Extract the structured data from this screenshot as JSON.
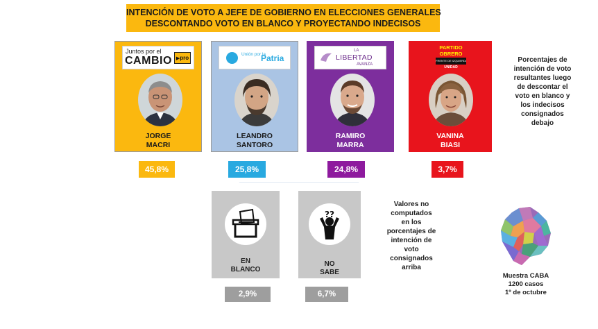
{
  "title": {
    "line1": "INTENCIÓN DE VOTO A JEFE DE GOBIERNO EN ELECCIONES GENERALES",
    "line2": "DESCONTANDO VOTO EN BLANCO Y PROYECTANDO INDECISOS"
  },
  "candidates": [
    {
      "first": "JORGE",
      "last": "MACRI",
      "party_logo_text": [
        "Juntos por el",
        "CAMBIO",
        "pro"
      ],
      "color": "#fbb80f",
      "badge_color": "#fbb80f",
      "percent_label": "45,8%"
    },
    {
      "first": "LEANDRO",
      "last": "SANTORO",
      "party_logo_text": [
        "Unión por la",
        "Patria"
      ],
      "color": "#aac4e4",
      "badge_color": "#28a9e0",
      "percent_label": "25,8%"
    },
    {
      "first": "RAMIRO",
      "last": "MARRA",
      "party_logo_text": [
        "LA",
        "LIBERTAD",
        "AVANZA"
      ],
      "color": "#7d2e9d",
      "badge_color": "#8e1a9e",
      "percent_label": "24,8%"
    },
    {
      "first": "VANINA",
      "last": "BIASI",
      "party_logo_text": [
        "PARTIDO",
        "OBRERO",
        "FRENTE DE IZQUIERDA",
        "UNIDAD"
      ],
      "color": "#e8141c",
      "badge_color": "#e8141c",
      "percent_label": "3,7%"
    }
  ],
  "right_note": [
    "Porcentajes de",
    "intención de voto",
    "resultantes luego",
    "de descontar el",
    "voto en blanco y",
    "los indecisos",
    "consignados",
    "debajo"
  ],
  "excluded": [
    {
      "line1": "EN",
      "line2": "BLANCO",
      "percent_label": "2,9%",
      "icon": "ballot-box-icon"
    },
    {
      "line1": "NO",
      "line2": "SABE",
      "percent_label": "6,7%",
      "icon": "confused-person-icon"
    }
  ],
  "middle_note": [
    "Valores no",
    "computados",
    "en los",
    "porcentajes de",
    "intención de",
    "voto",
    "consignados",
    "arriba"
  ],
  "sample": [
    "Muestra CABA",
    "1200 casos",
    "1º de octubre"
  ],
  "chart_data": {
    "type": "bar",
    "categories": [
      "JORGE MACRI",
      "LEANDRO SANTORO",
      "RAMIRO MARRA",
      "VANINA BIASI",
      "EN BLANCO",
      "NO SABE"
    ],
    "values": [
      45.8,
      25.8,
      24.8,
      3.7,
      2.9,
      6.7
    ],
    "title": "INTENCIÓN DE VOTO A JEFE DE GOBIERNO EN ELECCIONES GENERALES DESCONTANDO VOTO EN BLANCO Y PROYECTANDO INDECISOS",
    "unit": "%"
  },
  "colors": {
    "title_bg": "#fbb80f",
    "divider": "#8fb3d6",
    "gray_card": "#c8c8c8",
    "gray_badge": "#9e9e9e"
  }
}
